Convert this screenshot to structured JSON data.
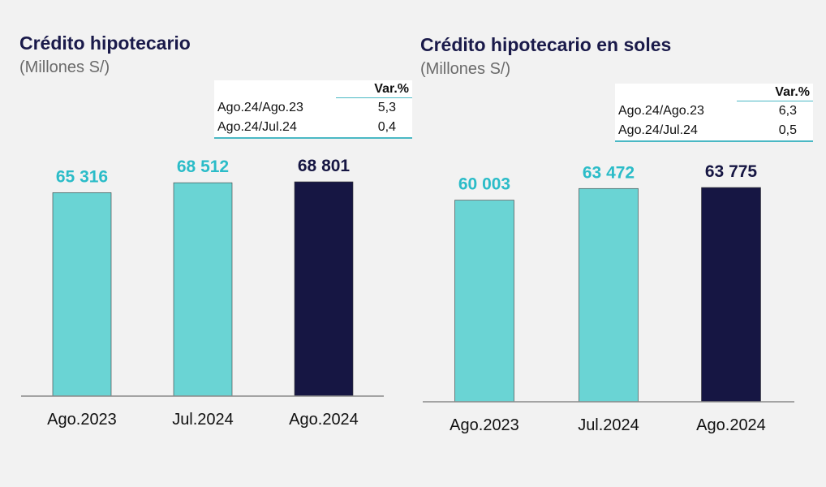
{
  "chart_data": [
    {
      "type": "bar",
      "title": "Crédito hipotecario",
      "subtitle": "(Millones S/)",
      "categories": [
        "Ago.2023",
        "Jul.2024",
        "Ago.2024"
      ],
      "values": [
        65316,
        68512,
        68801
      ],
      "value_labels": [
        "65 316",
        "68 512",
        "68 801"
      ],
      "colors": [
        "#6ad4d4",
        "#6ad4d4",
        "#161643"
      ],
      "label_colors": [
        "#2bbcc8",
        "#2bbcc8",
        "#161643"
      ],
      "ylim": [
        0,
        70000
      ],
      "grid": false,
      "variation_table": {
        "header": "Var.%",
        "rows": [
          {
            "label": "Ago.24/Ago.23",
            "value": "5,3"
          },
          {
            "label": "Ago.24/Jul.24",
            "value": "0,4"
          }
        ]
      }
    },
    {
      "type": "bar",
      "title": "Crédito hipotecario en soles",
      "subtitle": "(Millones S/)",
      "categories": [
        "Ago.2023",
        "Jul.2024",
        "Ago.2024"
      ],
      "values": [
        60003,
        63472,
        63775
      ],
      "value_labels": [
        "60 003",
        "63 472",
        "63 775"
      ],
      "colors": [
        "#6ad4d4",
        "#6ad4d4",
        "#161643"
      ],
      "label_colors": [
        "#2bbcc8",
        "#2bbcc8",
        "#161643"
      ],
      "ylim": [
        0,
        65000
      ],
      "grid": false,
      "variation_table": {
        "header": "Var.%",
        "rows": [
          {
            "label": "Ago.24/Ago.23",
            "value": "6,3"
          },
          {
            "label": "Ago.24/Jul.24",
            "value": "0,5"
          }
        ]
      }
    }
  ]
}
